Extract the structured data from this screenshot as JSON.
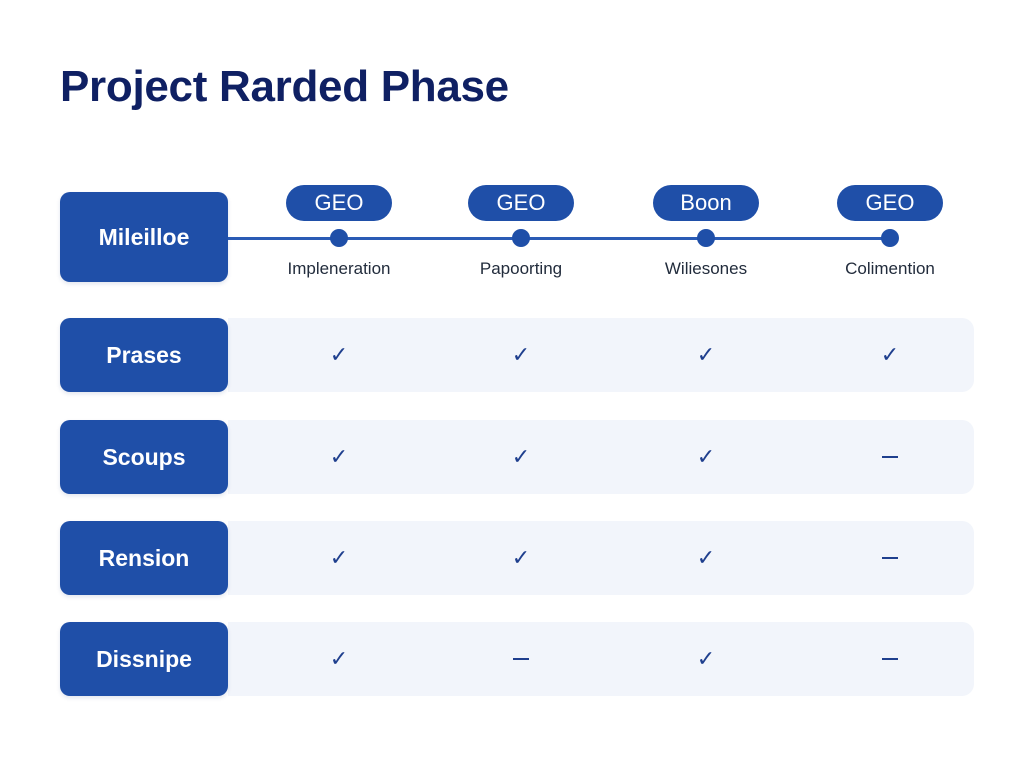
{
  "title": "Project Rarded Phase",
  "header_label": "Mileilloe",
  "phases": [
    {
      "badge": "GEO",
      "caption": "Impleneration"
    },
    {
      "badge": "GEO",
      "caption": "Papoorting"
    },
    {
      "badge": "Boon",
      "caption": "Wiliesones"
    },
    {
      "badge": "GEO",
      "caption": "Colimention"
    }
  ],
  "rows": [
    {
      "label": "Prases",
      "cells": [
        "check",
        "check",
        "check",
        "check"
      ]
    },
    {
      "label": "Scoups",
      "cells": [
        "check",
        "check",
        "check",
        "dash"
      ]
    },
    {
      "label": "Rension",
      "cells": [
        "check",
        "check",
        "check",
        "dash"
      ]
    },
    {
      "label": "Dissnipe",
      "cells": [
        "check",
        "dash",
        "check",
        "dash"
      ]
    }
  ],
  "symbols": {
    "check": "✓",
    "dash": "–"
  },
  "colors": {
    "accent": "#1f4fa8",
    "title": "#0f2063",
    "row_bg": "#f2f5fb"
  }
}
